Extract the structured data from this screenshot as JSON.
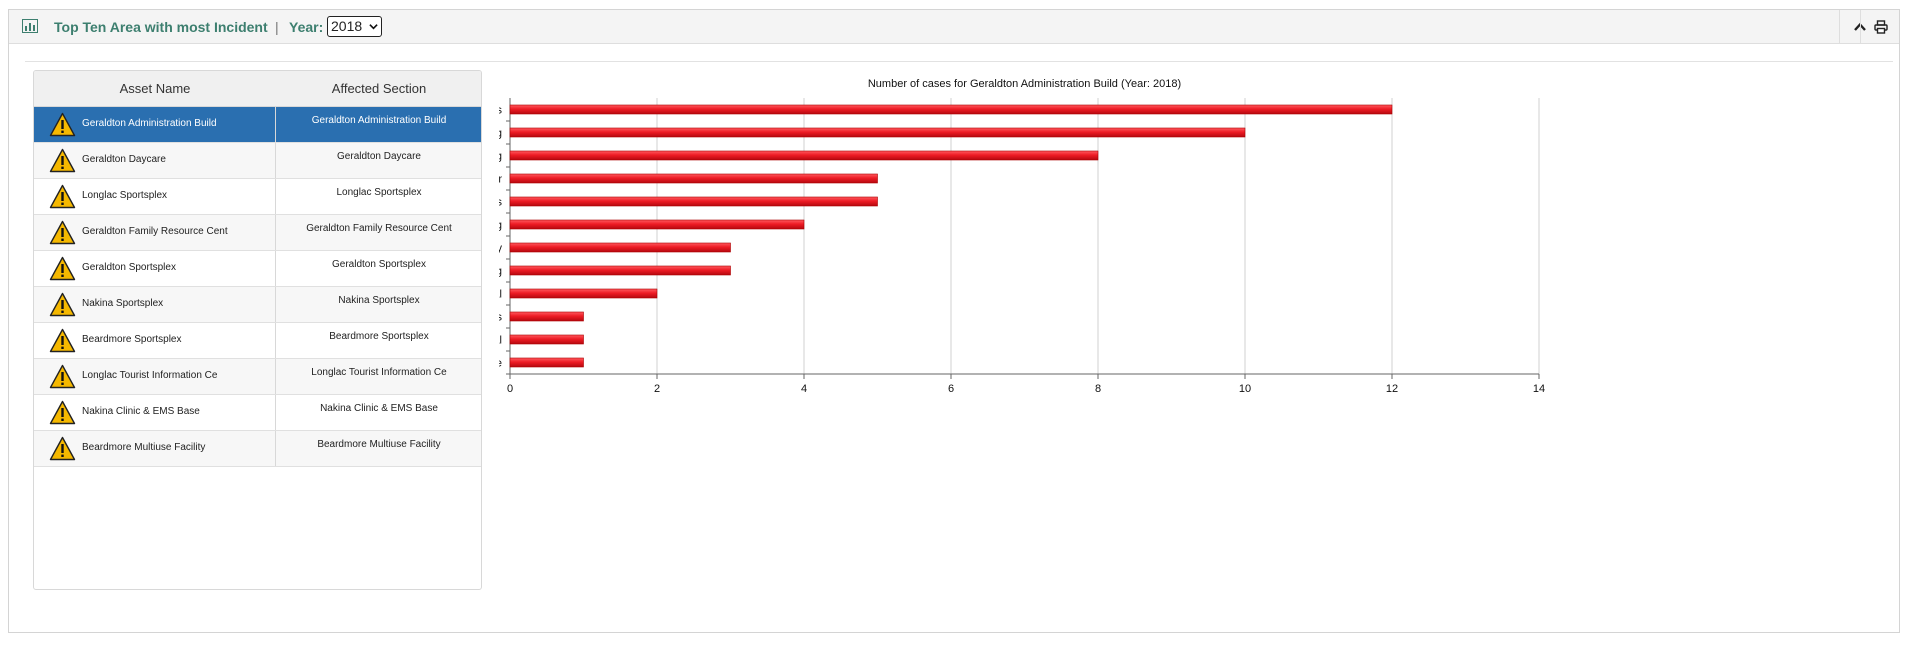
{
  "header": {
    "title": "Top Ten Area with most Incident",
    "separator": "|",
    "year_label": "Year:",
    "year_value": "2018",
    "icons": [
      "bar-chart-icon",
      "chevron-up-icon",
      "print-icon"
    ]
  },
  "table": {
    "columns": [
      "Asset Name",
      "Affected Section"
    ],
    "selected_index": 0,
    "rows": [
      {
        "asset": "Geraldton Administration Build",
        "section": "Geraldton Administration Build"
      },
      {
        "asset": "Geraldton Daycare",
        "section": "Geraldton Daycare"
      },
      {
        "asset": "Longlac Sportsplex",
        "section": "Longlac Sportsplex"
      },
      {
        "asset": "Geraldton Family Resource Cent",
        "section": "Geraldton Family Resource Cent"
      },
      {
        "asset": "Geraldton Sportsplex",
        "section": "Geraldton Sportsplex"
      },
      {
        "asset": "Nakina Sportsplex",
        "section": "Nakina Sportsplex"
      },
      {
        "asset": "Beardmore Sportsplex",
        "section": "Beardmore Sportsplex"
      },
      {
        "asset": "Longlac Tourist Information Ce",
        "section": "Longlac Tourist Information Ce"
      },
      {
        "asset": "Nakina Clinic & EMS Base",
        "section": "Nakina Clinic & EMS Base"
      },
      {
        "asset": "Beardmore Multiuse Facility",
        "section": "Beardmore Multiuse Facility"
      }
    ]
  },
  "colors": {
    "accent_title": "#3d7f6f",
    "selected_row": "#2a6fb0",
    "bar": "#ee1c25",
    "warning": "#f5b800"
  },
  "chart_data": {
    "type": "bar",
    "orientation": "horizontal",
    "title": "Number of cases for Geraldton Administration Build (Year: 2018)",
    "categories": [
      "Appliances",
      "Plumbing",
      "HVAC - Heating",
      "Damage - Water",
      "Doors",
      "HVAC - Cooling",
      "Safety",
      "Lighting",
      "Electrical",
      "Hot water systems",
      "Damage - Animal",
      "Signage"
    ],
    "values": [
      12,
      10,
      8,
      5,
      5,
      4,
      3,
      3,
      2,
      1,
      1,
      1
    ],
    "xlim": [
      0,
      14
    ],
    "xticks": [
      0,
      2,
      4,
      6,
      8,
      10,
      12,
      14
    ],
    "xlabel": "",
    "ylabel": "",
    "grid": true,
    "legend": "none"
  }
}
